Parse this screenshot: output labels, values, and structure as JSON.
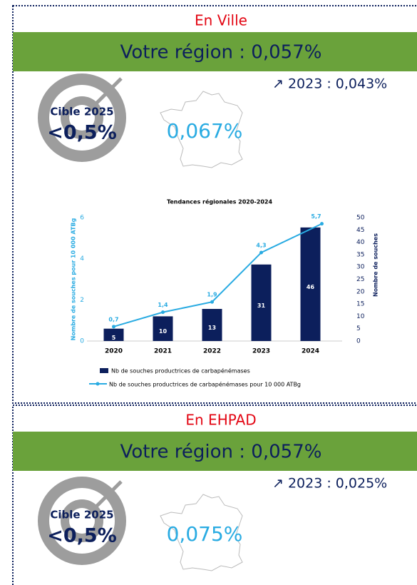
{
  "ville": {
    "label": "En Ville",
    "banner": "Votre région : 0,057%",
    "trend": "↗ 2023 : 0,043%",
    "target_label": "Cible 2025",
    "target_value": "<0,5%",
    "national": "0,067%"
  },
  "chart_data": {
    "type": "bar_line",
    "title": "Tendances régionales 2020-2024",
    "categories": [
      "2020",
      "2021",
      "2022",
      "2023",
      "2024"
    ],
    "series": [
      {
        "name": "Nb de souches productrices de carbapénémases",
        "type": "bar",
        "color": "#0c1f5c",
        "axis": "y2",
        "values": [
          5,
          10,
          13,
          31,
          46
        ]
      },
      {
        "name": "Nb de souches productrices de carbapénémases pour 10 000 ATBg",
        "type": "line",
        "color": "#29abe2",
        "values": [
          0.7,
          1.4,
          1.9,
          4.3,
          5.7
        ],
        "value_labels": [
          "0,7",
          "1,4",
          "1,9",
          "4,3",
          "5,7"
        ]
      }
    ],
    "ylabel": "Nombre de souches pour 10 000 ATBg",
    "y2label": "Nombre de souches",
    "ylim": [
      0,
      6
    ],
    "yticks": [
      0,
      2,
      4,
      6
    ],
    "y2lim": [
      0,
      50
    ],
    "y2ticks": [
      0,
      5,
      10,
      15,
      20,
      25,
      30,
      35,
      40,
      45,
      50
    ],
    "legend": "bottom-left"
  },
  "ehpad": {
    "label": "En EHPAD",
    "banner": "Votre région : 0,057%",
    "trend": "↗ 2023 : 0,025%",
    "target_label": "Cible 2025",
    "target_value": "<0,5%",
    "national": "0,075%"
  }
}
